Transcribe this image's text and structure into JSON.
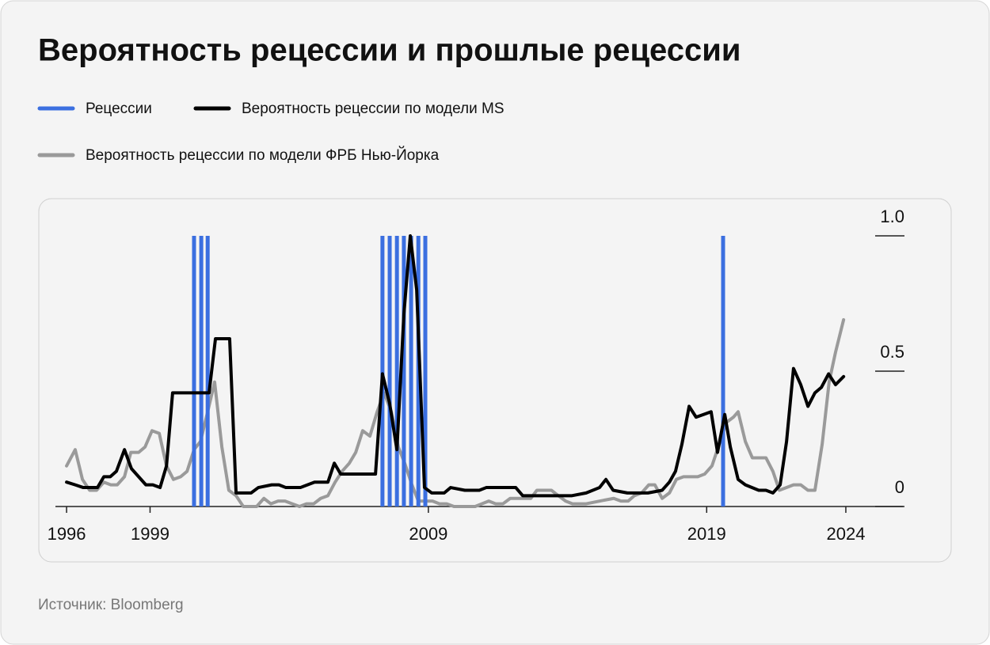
{
  "chart_data": {
    "type": "line",
    "title": "Вероятность рецессии и прошлые рецессии",
    "source": "Источник: Bloomberg",
    "xlim": [
      1995.6,
      2026.05
    ],
    "xticks": [
      1996,
      1999,
      2009,
      2019,
      2024
    ],
    "ylim": [
      0,
      1
    ],
    "yticks": [
      0,
      0.5,
      {
        "value": 1,
        "label": "1.0"
      }
    ],
    "series": [
      {
        "name": "Рецессии",
        "type": "bar",
        "color": "#3b6fe0",
        "x": [
          2000.58,
          2000.84,
          2001.07,
          2007.35,
          2007.61,
          2007.87,
          2008.12,
          2008.38,
          2008.64,
          2008.89,
          2019.59
        ],
        "values": [
          1,
          1,
          1,
          1,
          1,
          1,
          1,
          1,
          1,
          1,
          1
        ]
      },
      {
        "name": "Вероятность рецессии по модели MS",
        "type": "line",
        "color": "#000000",
        "x": [
          1996.0,
          1996.31,
          1996.6,
          1997.11,
          1997.34,
          1997.57,
          1997.79,
          1998.08,
          1998.33,
          1998.85,
          1999.1,
          1999.36,
          1999.59,
          1999.81,
          2001.12,
          2001.35,
          2001.86,
          2002.09,
          2002.63,
          2002.89,
          2003.37,
          2003.63,
          2003.88,
          2004.4,
          2004.91,
          2005.39,
          2005.62,
          2005.85,
          2007.1,
          2007.35,
          2007.61,
          2007.87,
          2008.12,
          2008.35,
          2008.58,
          2008.86,
          2009.12,
          2009.57,
          2009.8,
          2010.31,
          2010.83,
          2011.08,
          2012.14,
          2012.39,
          2013.42,
          2014.16,
          2014.67,
          2015.15,
          2015.38,
          2015.64,
          2016.15,
          2016.89,
          2017.4,
          2017.66,
          2017.88,
          2018.11,
          2018.37,
          2018.62,
          2019.16,
          2019.39,
          2019.65,
          2019.85,
          2020.13,
          2020.39,
          2020.87,
          2021.13,
          2021.38,
          2021.64,
          2021.87,
          2022.12,
          2022.38,
          2022.64,
          2022.89,
          2023.12,
          2023.38,
          2023.63,
          2023.92
        ],
        "values": [
          0.09,
          0.08,
          0.07,
          0.07,
          0.11,
          0.11,
          0.13,
          0.21,
          0.14,
          0.08,
          0.08,
          0.07,
          0.15,
          0.42,
          0.42,
          0.62,
          0.62,
          0.05,
          0.05,
          0.07,
          0.08,
          0.08,
          0.07,
          0.07,
          0.09,
          0.09,
          0.16,
          0.12,
          0.12,
          0.49,
          0.38,
          0.21,
          0.71,
          1.0,
          0.8,
          0.07,
          0.05,
          0.05,
          0.07,
          0.06,
          0.06,
          0.07,
          0.07,
          0.04,
          0.04,
          0.04,
          0.05,
          0.07,
          0.1,
          0.06,
          0.05,
          0.05,
          0.06,
          0.09,
          0.13,
          0.23,
          0.37,
          0.33,
          0.35,
          0.2,
          0.34,
          0.22,
          0.1,
          0.08,
          0.06,
          0.06,
          0.05,
          0.08,
          0.24,
          0.51,
          0.45,
          0.37,
          0.42,
          0.44,
          0.49,
          0.45,
          0.48
        ]
      },
      {
        "name": "Вероятность рецессии по модели ФРБ Нью-Йорка",
        "type": "line",
        "color": "#9a9a9a",
        "x": [
          1996.0,
          1996.31,
          1996.57,
          1996.83,
          1997.08,
          1997.34,
          1997.59,
          1997.82,
          1998.08,
          1998.31,
          1998.59,
          1998.82,
          1999.07,
          1999.33,
          1999.59,
          1999.84,
          2000.1,
          2000.33,
          2000.58,
          2000.81,
          2001.07,
          2001.32,
          2001.58,
          2001.83,
          2002.09,
          2002.35,
          2002.6,
          2002.83,
          2003.09,
          2003.34,
          2003.6,
          2003.85,
          2004.11,
          2004.37,
          2004.62,
          2004.88,
          2005.13,
          2005.39,
          2005.65,
          2005.9,
          2006.16,
          2006.39,
          2006.64,
          2006.9,
          2007.16,
          2007.41,
          2007.67,
          2007.92,
          2008.15,
          2008.41,
          2008.64,
          2008.89,
          2009.15,
          2009.4,
          2009.66,
          2009.92,
          2010.68,
          2011.17,
          2011.42,
          2011.68,
          2011.94,
          2012.16,
          2012.42,
          2012.68,
          2012.9,
          2013.16,
          2013.42,
          2013.67,
          2013.93,
          2014.18,
          2014.67,
          2015.15,
          2015.66,
          2015.92,
          2016.18,
          2016.4,
          2016.66,
          2016.92,
          2017.14,
          2017.4,
          2017.66,
          2017.91,
          2018.17,
          2018.42,
          2018.68,
          2018.93,
          2019.19,
          2019.45,
          2019.7,
          2019.96,
          2020.13,
          2020.39,
          2020.64,
          2020.87,
          2021.13,
          2021.38,
          2021.61,
          2021.87,
          2022.12,
          2022.38,
          2022.64,
          2022.89,
          2023.15,
          2023.4,
          2023.63,
          2023.92
        ],
        "values": [
          0.15,
          0.21,
          0.1,
          0.06,
          0.06,
          0.09,
          0.08,
          0.08,
          0.11,
          0.2,
          0.2,
          0.22,
          0.28,
          0.27,
          0.15,
          0.1,
          0.11,
          0.13,
          0.21,
          0.24,
          0.35,
          0.46,
          0.22,
          0.06,
          0.04,
          0.0,
          0.0,
          0.0,
          0.03,
          0.01,
          0.02,
          0.02,
          0.01,
          0.0,
          0.01,
          0.01,
          0.03,
          0.04,
          0.09,
          0.13,
          0.16,
          0.2,
          0.28,
          0.26,
          0.35,
          0.42,
          0.35,
          0.22,
          0.16,
          0.08,
          0.02,
          0.02,
          0.02,
          0.01,
          0.01,
          0.0,
          0.0,
          0.02,
          0.01,
          0.01,
          0.03,
          0.03,
          0.03,
          0.03,
          0.06,
          0.06,
          0.06,
          0.04,
          0.02,
          0.01,
          0.01,
          0.02,
          0.03,
          0.02,
          0.02,
          0.04,
          0.05,
          0.08,
          0.08,
          0.03,
          0.05,
          0.1,
          0.11,
          0.11,
          0.11,
          0.12,
          0.15,
          0.23,
          0.31,
          0.33,
          0.35,
          0.24,
          0.18,
          0.18,
          0.18,
          0.13,
          0.06,
          0.07,
          0.08,
          0.08,
          0.06,
          0.06,
          0.23,
          0.46,
          0.57,
          0.69
        ]
      }
    ]
  }
}
